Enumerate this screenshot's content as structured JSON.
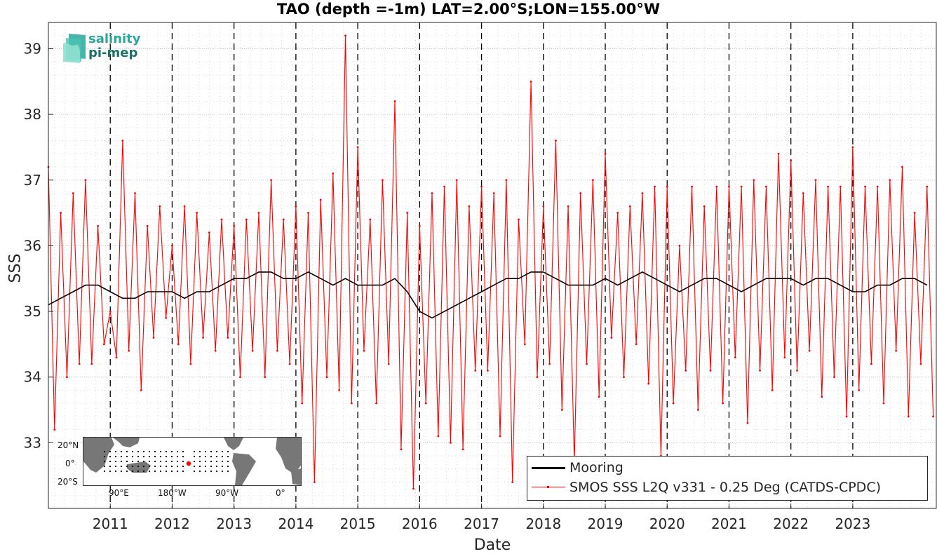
{
  "chart_data": {
    "type": "line",
    "title": "TAO (depth =-1m) LAT=2.00°S;LON=155.00°W",
    "xlabel": "Date",
    "ylabel": "SSS",
    "xlim": [
      2010.0,
      2024.35
    ],
    "ylim": [
      32.0,
      39.4
    ],
    "x_ticks": [
      "2011",
      "2012",
      "2013",
      "2014",
      "2015",
      "2016",
      "2017",
      "2018",
      "2019",
      "2020",
      "2021",
      "2022",
      "2023"
    ],
    "x_tick_values": [
      2011,
      2012,
      2013,
      2014,
      2015,
      2016,
      2017,
      2018,
      2019,
      2020,
      2021,
      2022,
      2023
    ],
    "y_ticks": [
      33,
      34,
      35,
      36,
      37,
      38,
      39
    ],
    "grid": true,
    "year_boundaries_dashed": true,
    "legend_position": "bottom-right",
    "series": [
      {
        "name": "Mooring",
        "color": "#000000",
        "x": [
          2010.0,
          2010.2,
          2010.4,
          2010.6,
          2010.8,
          2011.0,
          2011.2,
          2011.4,
          2011.6,
          2011.8,
          2012.0,
          2012.2,
          2012.4,
          2012.6,
          2012.8,
          2013.0,
          2013.2,
          2013.4,
          2013.6,
          2013.8,
          2014.0,
          2014.2,
          2014.4,
          2014.6,
          2014.8,
          2015.0,
          2015.2,
          2015.4,
          2015.6,
          2015.8,
          2016.0,
          2016.2,
          2016.4,
          2016.6,
          2016.8,
          2017.0,
          2017.2,
          2017.4,
          2017.6,
          2017.8,
          2018.0,
          2018.2,
          2018.4,
          2018.6,
          2018.8,
          2019.0,
          2019.2,
          2019.4,
          2019.6,
          2019.8,
          2020.0,
          2020.2,
          2020.4,
          2020.6,
          2020.8,
          2021.0,
          2021.2,
          2021.4,
          2021.6,
          2021.8,
          2022.0,
          2022.2,
          2022.4,
          2022.6,
          2022.8,
          2023.0,
          2023.2,
          2023.4,
          2023.6,
          2023.8,
          2024.0,
          2024.2
        ],
        "values": [
          35.1,
          35.2,
          35.3,
          35.4,
          35.4,
          35.3,
          35.2,
          35.2,
          35.3,
          35.3,
          35.3,
          35.2,
          35.3,
          35.3,
          35.4,
          35.5,
          35.5,
          35.6,
          35.6,
          35.5,
          35.5,
          35.6,
          35.5,
          35.4,
          35.5,
          35.4,
          35.4,
          35.4,
          35.5,
          35.3,
          35.0,
          34.9,
          35.0,
          35.1,
          35.2,
          35.3,
          35.4,
          35.5,
          35.5,
          35.6,
          35.6,
          35.5,
          35.4,
          35.4,
          35.4,
          35.5,
          35.4,
          35.5,
          35.6,
          35.5,
          35.4,
          35.3,
          35.4,
          35.5,
          35.5,
          35.4,
          35.3,
          35.4,
          35.5,
          35.5,
          35.5,
          35.4,
          35.5,
          35.5,
          35.4,
          35.3,
          35.3,
          35.4,
          35.4,
          35.5,
          35.5,
          35.4
        ]
      },
      {
        "name": "SMOS SSS L2Q v331 - 0.25 Deg (CATDS-CPDC)",
        "color": "#ff0000",
        "x": [
          2010.0,
          2010.1,
          2010.2,
          2010.3,
          2010.4,
          2010.5,
          2010.6,
          2010.7,
          2010.8,
          2010.9,
          2011.0,
          2011.1,
          2011.2,
          2011.3,
          2011.4,
          2011.5,
          2011.6,
          2011.7,
          2011.8,
          2011.9,
          2012.0,
          2012.1,
          2012.2,
          2012.3,
          2012.4,
          2012.5,
          2012.6,
          2012.7,
          2012.8,
          2012.9,
          2013.0,
          2013.1,
          2013.2,
          2013.3,
          2013.4,
          2013.5,
          2013.6,
          2013.7,
          2013.8,
          2013.9,
          2014.0,
          2014.1,
          2014.2,
          2014.3,
          2014.4,
          2014.5,
          2014.6,
          2014.7,
          2014.8,
          2014.9,
          2015.0,
          2015.1,
          2015.2,
          2015.3,
          2015.4,
          2015.5,
          2015.6,
          2015.7,
          2015.8,
          2015.9,
          2016.0,
          2016.1,
          2016.2,
          2016.3,
          2016.4,
          2016.5,
          2016.6,
          2016.7,
          2016.8,
          2016.9,
          2017.0,
          2017.1,
          2017.2,
          2017.3,
          2017.4,
          2017.5,
          2017.6,
          2017.7,
          2017.8,
          2017.9,
          2018.0,
          2018.1,
          2018.2,
          2018.3,
          2018.4,
          2018.5,
          2018.6,
          2018.7,
          2018.8,
          2018.9,
          2019.0,
          2019.1,
          2019.2,
          2019.3,
          2019.4,
          2019.5,
          2019.6,
          2019.7,
          2019.8,
          2019.9,
          2020.0,
          2020.1,
          2020.2,
          2020.3,
          2020.4,
          2020.5,
          2020.6,
          2020.7,
          2020.8,
          2020.9,
          2021.0,
          2021.1,
          2021.2,
          2021.3,
          2021.4,
          2021.5,
          2021.6,
          2021.7,
          2021.8,
          2021.9,
          2022.0,
          2022.1,
          2022.2,
          2022.3,
          2022.4,
          2022.5,
          2022.6,
          2022.7,
          2022.8,
          2022.9,
          2023.0,
          2023.1,
          2023.2,
          2023.3,
          2023.4,
          2023.5,
          2023.6,
          2023.7,
          2023.8,
          2023.9,
          2024.0,
          2024.1,
          2024.2,
          2024.3
        ],
        "values": [
          37.2,
          33.2,
          36.5,
          34.0,
          36.8,
          34.2,
          37.0,
          34.2,
          36.3,
          34.5,
          35.0,
          34.3,
          37.6,
          34.4,
          36.8,
          33.8,
          36.3,
          34.6,
          36.6,
          34.9,
          36.0,
          34.5,
          36.6,
          34.2,
          36.5,
          34.6,
          36.2,
          34.4,
          36.4,
          34.6,
          36.3,
          34.0,
          36.4,
          34.4,
          36.5,
          34.0,
          37.0,
          34.4,
          36.4,
          34.2,
          36.6,
          33.6,
          36.5,
          32.4,
          36.7,
          34.0,
          37.1,
          33.8,
          39.2,
          33.6,
          37.5,
          34.4,
          36.4,
          33.6,
          37.0,
          34.2,
          38.2,
          32.9,
          36.5,
          32.3,
          36.3,
          33.6,
          36.8,
          33.1,
          36.9,
          33.0,
          37.0,
          32.9,
          36.6,
          34.1,
          36.9,
          34.1,
          36.8,
          33.1,
          37.0,
          32.4,
          36.4,
          34.5,
          38.5,
          34.0,
          36.6,
          34.2,
          37.6,
          33.5,
          36.6,
          32.7,
          36.8,
          34.2,
          37.0,
          33.7,
          37.4,
          34.6,
          36.5,
          34.0,
          36.6,
          34.5,
          36.8,
          33.9,
          36.9,
          32.8,
          36.9,
          33.6,
          36.0,
          34.1,
          36.9,
          33.5,
          36.6,
          34.1,
          36.9,
          33.6,
          36.9,
          34.3,
          36.9,
          33.3,
          37.0,
          34.1,
          36.9,
          33.8,
          37.4,
          34.3,
          37.3,
          34.1,
          36.8,
          34.4,
          37.0,
          33.7,
          36.9,
          34.0,
          36.9,
          33.4,
          37.5,
          33.8,
          36.9,
          34.2,
          36.9,
          33.6,
          37.0,
          34.4,
          37.2,
          33.4,
          36.5,
          34.2,
          36.9,
          33.4
        ]
      }
    ],
    "inset_map": {
      "lat_labels": [
        "20°N",
        "0°",
        "20°S"
      ],
      "lon_labels": [
        "90°E",
        "180°W",
        "90°W",
        "0°"
      ]
    }
  },
  "logo": {
    "line1": "salinity",
    "line2": "pi-mep"
  }
}
